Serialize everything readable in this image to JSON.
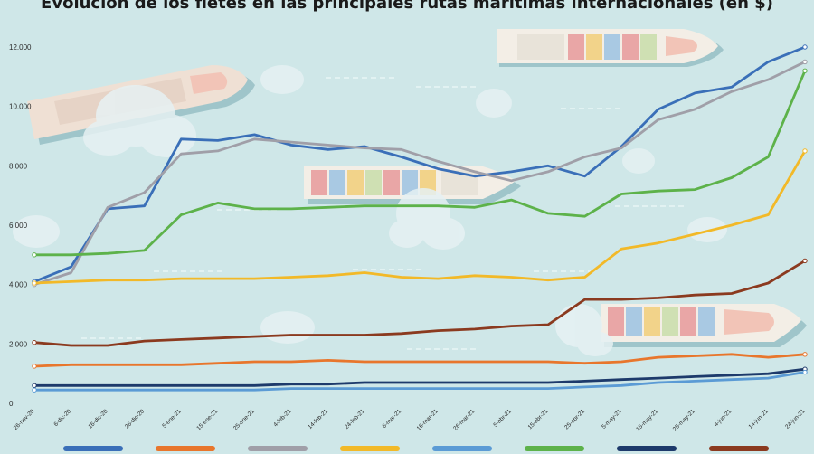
{
  "chart_data": {
    "type": "line",
    "title": "Evolución de los fletes en las principales rutas marítimas internacionales (en $)",
    "xlabel": "",
    "ylabel": "",
    "ylim": [
      0,
      12000
    ],
    "yticks": [
      "0",
      "2.000",
      "4.000",
      "6.000",
      "8.000",
      "10.000",
      "12.000"
    ],
    "categories": [
      "26-nov-20",
      "6-dic-20",
      "16-dic-20",
      "26-dic-20",
      "5-ene-21",
      "15-ene-21",
      "25-ene-21",
      "4-feb-21",
      "14-feb-21",
      "24-feb-21",
      "6-mar-21",
      "16-mar-21",
      "26-mar-21",
      "5-abr-21",
      "15-abr-21",
      "25-abr-21",
      "5-may-21",
      "15-may-21",
      "25-may-21",
      "4-jun-21",
      "14-jun-21",
      "24-jun-21"
    ],
    "grid": false,
    "legend_position": "bottom",
    "series": [
      {
        "color": "#3a6fb8",
        "values": [
          4100,
          4600,
          6550,
          6650,
          8900,
          8850,
          9050,
          8700,
          8550,
          8650,
          8300,
          7900,
          7650,
          7800,
          8000,
          7650,
          8650,
          9900,
          10450,
          10650,
          11500,
          12000
        ]
      },
      {
        "color": "#a09fa8",
        "values": [
          4000,
          4400,
          6600,
          7100,
          8400,
          8500,
          8900,
          8800,
          8700,
          8600,
          8550,
          8150,
          7800,
          7500,
          7800,
          8300,
          8600,
          9550,
          9900,
          10500,
          10900,
          11500
        ]
      },
      {
        "color": "#5db24a",
        "values": [
          5000,
          5000,
          5050,
          5150,
          6350,
          6750,
          6550,
          6550,
          6600,
          6650,
          6650,
          6650,
          6600,
          6850,
          6400,
          6300,
          7050,
          7150,
          7200,
          7600,
          8300,
          11200
        ]
      },
      {
        "color": "#f2b928",
        "values": [
          4050,
          4100,
          4150,
          4150,
          4200,
          4200,
          4200,
          4250,
          4300,
          4400,
          4250,
          4200,
          4300,
          4250,
          4150,
          4250,
          5200,
          5400,
          5700,
          6000,
          6350,
          8500
        ]
      },
      {
        "color": "#8b3a1f",
        "values": [
          2050,
          1950,
          1950,
          2100,
          2150,
          2200,
          2250,
          2300,
          2300,
          2300,
          2350,
          2450,
          2500,
          2600,
          2650,
          3500,
          3500,
          3550,
          3650,
          3700,
          4050,
          4800
        ]
      },
      {
        "color": "#e8762c",
        "values": [
          1250,
          1300,
          1300,
          1300,
          1300,
          1350,
          1400,
          1400,
          1450,
          1400,
          1400,
          1400,
          1400,
          1400,
          1400,
          1350,
          1400,
          1550,
          1600,
          1650,
          1550,
          1650
        ]
      },
      {
        "color": "#1d3a6b",
        "values": [
          600,
          600,
          600,
          600,
          600,
          600,
          600,
          650,
          650,
          700,
          700,
          700,
          700,
          700,
          700,
          750,
          800,
          850,
          900,
          950,
          1000,
          1150
        ]
      },
      {
        "color": "#5b9bd5",
        "values": [
          450,
          450,
          450,
          450,
          450,
          450,
          450,
          500,
          500,
          500,
          500,
          500,
          500,
          500,
          500,
          550,
          600,
          700,
          750,
          800,
          850,
          1050
        ]
      }
    ]
  }
}
